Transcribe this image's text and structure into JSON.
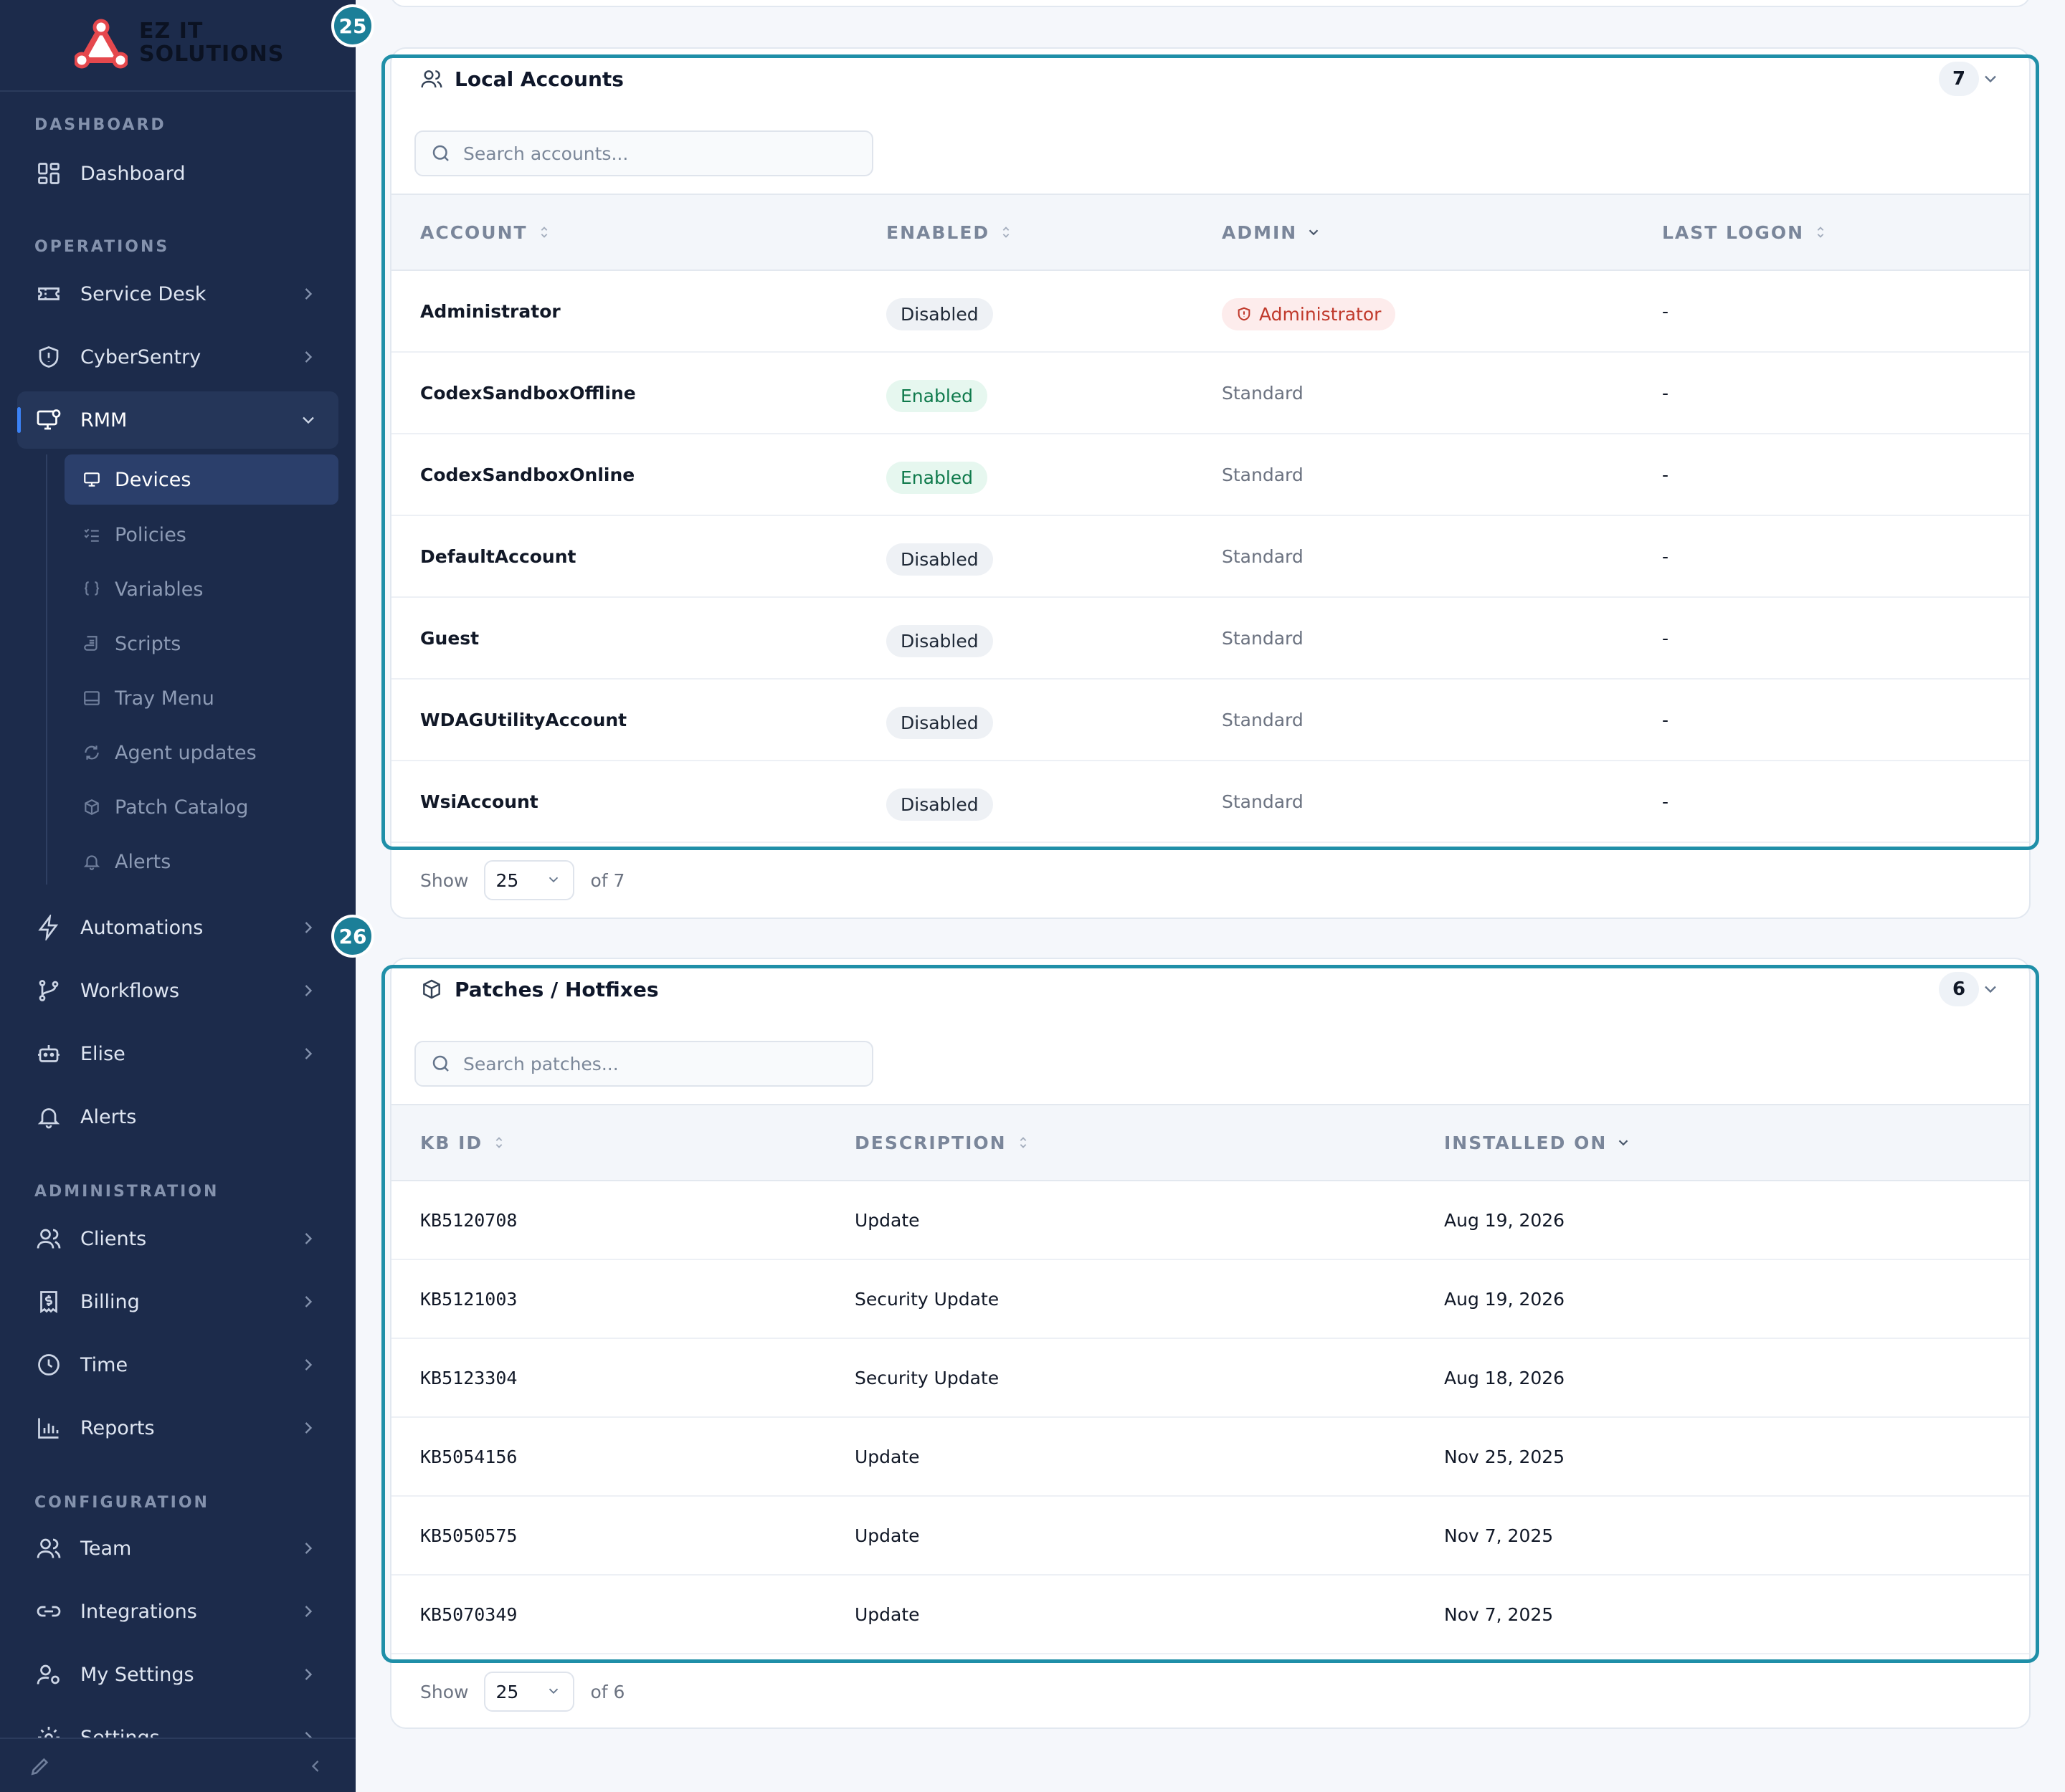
{
  "brand": {
    "name_line1": "EZ IT",
    "name_line2": "SOLUTIONS"
  },
  "colors": {
    "sidebar_bg": "#1c2b4b",
    "accent": "#1f8fa8",
    "active_bar": "#3b82f6",
    "enabled_text": "#0f7a4c",
    "admin_text": "#c0392b"
  },
  "sidebar": {
    "sections": {
      "dashboard": "DASHBOARD",
      "operations": "OPERATIONS",
      "administration": "ADMINISTRATION",
      "configuration": "CONFIGURATION"
    },
    "dashboard": {
      "label": "Dashboard",
      "icon": "grid-icon"
    },
    "service_desk": {
      "label": "Service Desk",
      "icon": "ticket-icon"
    },
    "cybersentry": {
      "label": "CyberSentry",
      "icon": "shield-icon"
    },
    "rmm": {
      "label": "RMM",
      "icon": "monitor-gear-icon"
    },
    "rmm_sub": [
      {
        "label": "Devices",
        "icon": "monitor-icon"
      },
      {
        "label": "Policies",
        "icon": "list-check-icon"
      },
      {
        "label": "Variables",
        "icon": "braces-icon"
      },
      {
        "label": "Scripts",
        "icon": "scroll-icon"
      },
      {
        "label": "Tray Menu",
        "icon": "tray-icon"
      },
      {
        "label": "Agent updates",
        "icon": "refresh-icon"
      },
      {
        "label": "Patch Catalog",
        "icon": "package-icon"
      },
      {
        "label": "Alerts",
        "icon": "bell-icon"
      }
    ],
    "automations": {
      "label": "Automations",
      "icon": "bolt-icon"
    },
    "workflows": {
      "label": "Workflows",
      "icon": "branch-icon"
    },
    "elise": {
      "label": "Elise",
      "icon": "bot-icon"
    },
    "alerts": {
      "label": "Alerts",
      "icon": "bell-icon"
    },
    "clients": {
      "label": "Clients",
      "icon": "users-icon"
    },
    "billing": {
      "label": "Billing",
      "icon": "receipt-icon"
    },
    "time": {
      "label": "Time",
      "icon": "clock-icon"
    },
    "reports": {
      "label": "Reports",
      "icon": "bar-chart-icon"
    },
    "team": {
      "label": "Team",
      "icon": "users-icon"
    },
    "integrations": {
      "label": "Integrations",
      "icon": "link-icon"
    },
    "my_settings": {
      "label": "My Settings",
      "icon": "user-cog-icon"
    },
    "settings": {
      "label": "Settings",
      "icon": "gear-icon"
    }
  },
  "steps": {
    "local_accounts": "25",
    "patches": "26"
  },
  "local_accounts": {
    "title": "Local Accounts",
    "count": "7",
    "search_placeholder": "Search accounts...",
    "columns": [
      "ACCOUNT",
      "ENABLED",
      "ADMIN",
      "LAST LOGON"
    ],
    "rows": [
      {
        "account": "Administrator",
        "enabled": "Disabled",
        "admin": "Administrator",
        "last_logon": "-"
      },
      {
        "account": "CodexSandboxOffline",
        "enabled": "Enabled",
        "admin": "Standard",
        "last_logon": "-"
      },
      {
        "account": "CodexSandboxOnline",
        "enabled": "Enabled",
        "admin": "Standard",
        "last_logon": "-"
      },
      {
        "account": "DefaultAccount",
        "enabled": "Disabled",
        "admin": "Standard",
        "last_logon": "-"
      },
      {
        "account": "Guest",
        "enabled": "Disabled",
        "admin": "Standard",
        "last_logon": "-"
      },
      {
        "account": "WDAGUtilityAccount",
        "enabled": "Disabled",
        "admin": "Standard",
        "last_logon": "-"
      },
      {
        "account": "WsiAccount",
        "enabled": "Disabled",
        "admin": "Standard",
        "last_logon": "-"
      }
    ],
    "pager": {
      "show_label": "Show",
      "page_size": "25",
      "of_label": "of 7"
    }
  },
  "patches": {
    "title": "Patches / Hotfixes",
    "count": "6",
    "search_placeholder": "Search patches...",
    "columns": [
      "KB ID",
      "DESCRIPTION",
      "INSTALLED ON"
    ],
    "rows": [
      {
        "kb": "KB5120708",
        "description": "Update",
        "installed": "Aug 19, 2026"
      },
      {
        "kb": "KB5121003",
        "description": "Security Update",
        "installed": "Aug 19, 2026"
      },
      {
        "kb": "KB5123304",
        "description": "Security Update",
        "installed": "Aug 18, 2026"
      },
      {
        "kb": "KB5054156",
        "description": "Update",
        "installed": "Nov 25, 2025"
      },
      {
        "kb": "KB5050575",
        "description": "Update",
        "installed": "Nov 7, 2025"
      },
      {
        "kb": "KB5070349",
        "description": "Update",
        "installed": "Nov 7, 2025"
      }
    ],
    "pager": {
      "show_label": "Show",
      "page_size": "25",
      "of_label": "of 6"
    }
  }
}
